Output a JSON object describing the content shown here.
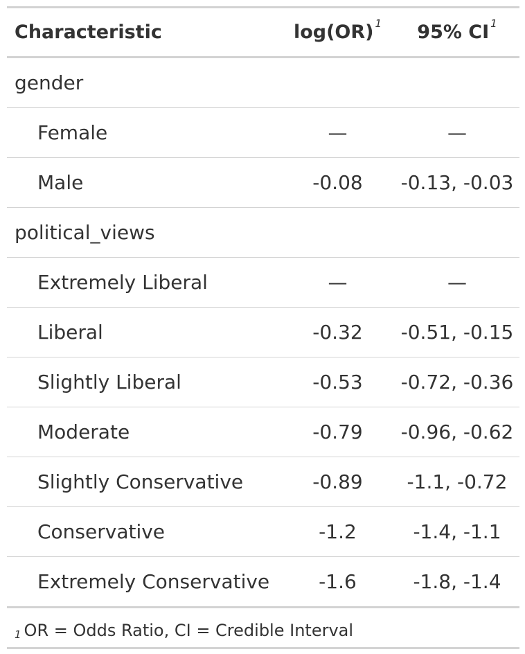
{
  "table": {
    "headers": {
      "characteristic": "Characteristic",
      "log_or": "log(OR)",
      "log_or_note": "1",
      "ci": "95% CI",
      "ci_note": "1"
    },
    "groups": [
      {
        "label": "gender",
        "rows": [
          {
            "label": "Female",
            "log_or": "—",
            "ci": "—"
          },
          {
            "label": "Male",
            "log_or": "-0.08",
            "ci": "-0.13, -0.03"
          }
        ]
      },
      {
        "label": "political_views",
        "rows": [
          {
            "label": "Extremely Liberal",
            "log_or": "—",
            "ci": "—"
          },
          {
            "label": "Liberal",
            "log_or": "-0.32",
            "ci": "-0.51, -0.15"
          },
          {
            "label": "Slightly Liberal",
            "log_or": "-0.53",
            "ci": "-0.72, -0.36"
          },
          {
            "label": "Moderate",
            "log_or": "-0.79",
            "ci": "-0.96, -0.62"
          },
          {
            "label": "Slightly Conservative",
            "log_or": "-0.89",
            "ci": "-1.1, -0.72"
          },
          {
            "label": "Conservative",
            "log_or": "-1.2",
            "ci": "-1.4, -1.1"
          },
          {
            "label": "Extremely Conservative",
            "log_or": "-1.6",
            "ci": "-1.8, -1.4"
          }
        ]
      }
    ],
    "footnote": {
      "marker": "1",
      "text": "OR = Odds Ratio, CI = Credible Interval"
    }
  }
}
